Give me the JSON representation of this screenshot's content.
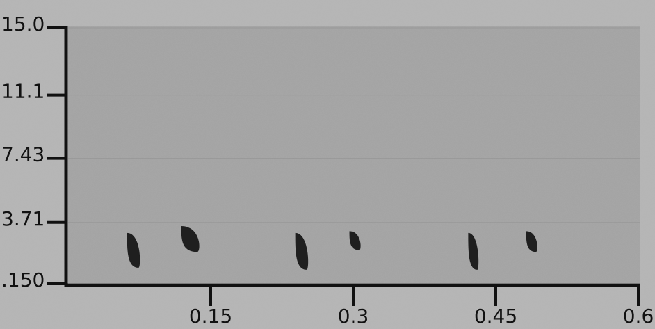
{
  "chart_data": {
    "type": "spectrogram",
    "xlim": [
      0,
      0.6
    ],
    "xticks": [
      0.15,
      0.3,
      0.45,
      0.6
    ],
    "ylim": [
      0.15,
      15
    ],
    "yticks": [
      {
        "value": 0.15,
        "label": ".150"
      },
      3.71,
      7.43,
      11.1,
      {
        "value": 15,
        "label": "15.0"
      }
    ],
    "color": "#111111",
    "syllables": {
      "t0": [
        0.062,
        0.119,
        0.239,
        0.296,
        0.421,
        0.482
      ],
      "t1": [
        0.077,
        0.14,
        0.254,
        0.309,
        0.433,
        0.495
      ],
      "f0": [
        1.08,
        2.0,
        0.96,
        2.1,
        0.96,
        2.0
      ],
      "f1": [
        3.1,
        3.5,
        3.1,
        3.2,
        3.1,
        3.2
      ]
    }
  }
}
